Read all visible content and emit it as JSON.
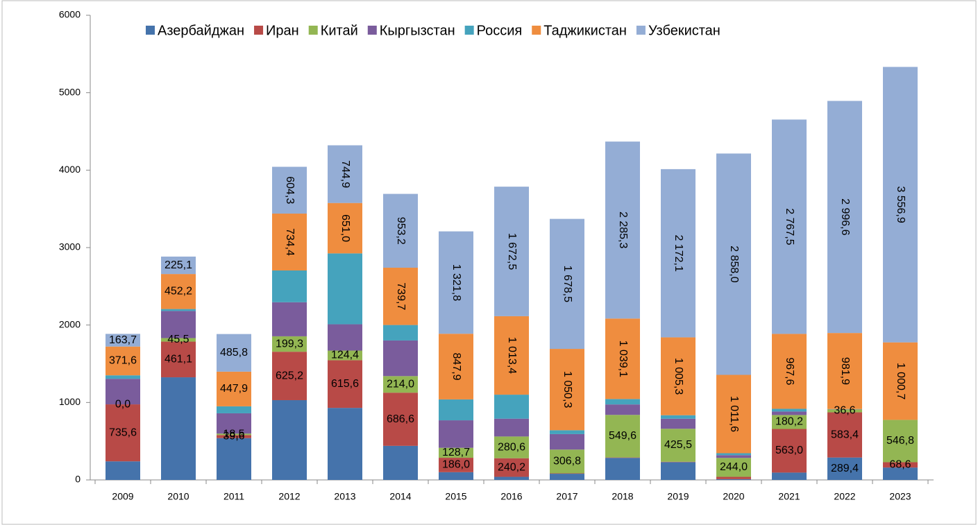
{
  "chart_data": {
    "type": "stacked_bar",
    "categories": [
      "2009",
      "2010",
      "2011",
      "2012",
      "2013",
      "2014",
      "2015",
      "2016",
      "2017",
      "2018",
      "2019",
      "2020",
      "2021",
      "2022",
      "2023"
    ],
    "ylim": [
      0,
      6000
    ],
    "yticks": [
      0,
      1000,
      2000,
      3000,
      4000,
      5000,
      6000
    ],
    "legend": "top",
    "series": [
      {
        "name": "Азербайджан",
        "color": "#4573ab",
        "values": [
          240,
          1325,
          540,
          1030,
          930,
          440,
          100,
          40,
          80,
          285,
          230,
          10,
          95,
          289.4,
          160
        ],
        "value_labels": [
          null,
          null,
          null,
          null,
          null,
          null,
          null,
          null,
          null,
          null,
          null,
          null,
          null,
          "289,4",
          null
        ]
      },
      {
        "name": "Иран",
        "color": "#b84a47",
        "values": [
          735.6,
          461.1,
          39.6,
          625.2,
          615.6,
          686.6,
          186.0,
          240.2,
          5,
          5,
          5,
          30,
          563.0,
          583.4,
          68.6
        ],
        "value_labels": [
          "735,6",
          "461,1",
          "39,6",
          "625,2",
          "615,6",
          "686,6",
          "186,0",
          "240,2",
          null,
          null,
          null,
          null,
          "563,0",
          "583,4",
          "68,6"
        ]
      },
      {
        "name": "Китай",
        "color": "#93b653",
        "values": [
          0.0,
          45.5,
          18.5,
          199.3,
          124.4,
          214.0,
          128.7,
          280.6,
          306.8,
          549.6,
          425.5,
          244.0,
          180.2,
          36.6,
          546.8
        ],
        "value_labels": [
          "0,0",
          "45,5",
          "18,5",
          "199,3",
          "124,4",
          "214,0",
          "128,7",
          "280,6",
          "306,8",
          "549,6",
          "425,5",
          "244,0",
          "180,2",
          "36,6",
          "546,8"
        ]
      },
      {
        "name": "Кыргызстан",
        "color": "#7a5c9c",
        "values": [
          330,
          350,
          262,
          440,
          340,
          460,
          355,
          230,
          200,
          135,
          130,
          36,
          45,
          3,
          0
        ],
        "value_labels": [
          null,
          null,
          null,
          null,
          null,
          null,
          null,
          null,
          null,
          null,
          null,
          null,
          null,
          null,
          null
        ]
      },
      {
        "name": "Россия",
        "color": "#45a3bd",
        "values": [
          45,
          25,
          90,
          410,
          915,
          200,
          270,
          310,
          50,
          70,
          45,
          25,
          35,
          3,
          0
        ],
        "value_labels": [
          null,
          null,
          null,
          null,
          null,
          null,
          null,
          null,
          null,
          null,
          null,
          null,
          null,
          null,
          null
        ]
      },
      {
        "name": "Таджикистан",
        "color": "#ef8d3f",
        "values": [
          371.6,
          452.2,
          447.9,
          734.4,
          651.0,
          739.7,
          847.9,
          1013.4,
          1050.3,
          1039.1,
          1005.3,
          1011.6,
          967.6,
          981.9,
          1000.7
        ],
        "value_labels": [
          "371,6",
          "452,2",
          "447,9",
          "734,4",
          "651,0",
          "739,7",
          "847,9",
          "1 013,4",
          "1 050,3",
          "1 039,1",
          "1 005,3",
          "1 011,6",
          "967,6",
          "981,9",
          "1 000,7"
        ]
      },
      {
        "name": "Узбекистан",
        "color": "#94add5",
        "values": [
          163.7,
          225.1,
          485.8,
          604.3,
          744.9,
          953.2,
          1321.8,
          1672.5,
          1678.5,
          2285.3,
          2172.1,
          2858.0,
          2767.5,
          2996.6,
          3556.9
        ],
        "value_labels": [
          "163,7",
          "225,1",
          "485,8",
          "604,3",
          "744,9",
          "953,2",
          "1 321,8",
          "1 672,5",
          "1 678,5",
          "2 285,3",
          "2 172,1",
          "2 858,0",
          "2 767,5",
          "2 996,6",
          "3 556,9"
        ]
      }
    ]
  }
}
